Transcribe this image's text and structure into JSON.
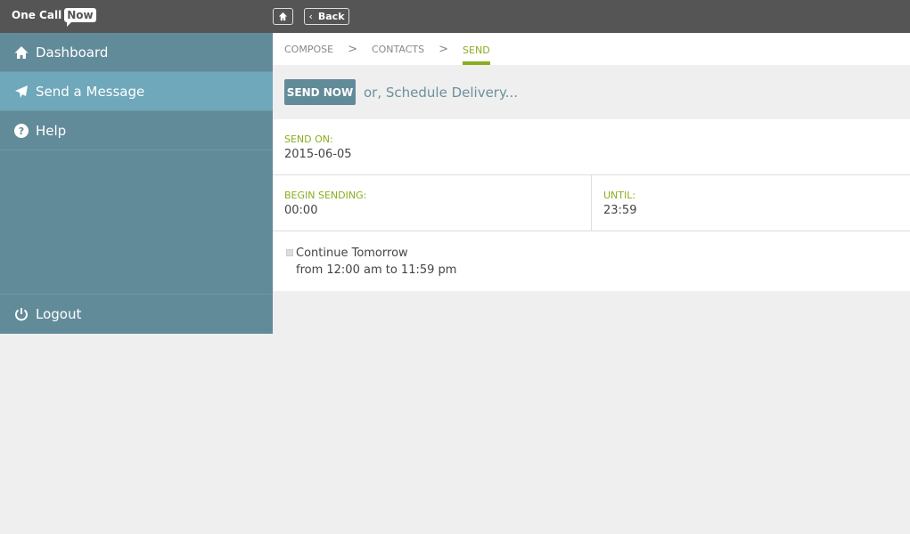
{
  "header": {
    "logo_text": "One Call",
    "logo_badge": "Now",
    "home_icon": "home-icon",
    "back_label": "Back"
  },
  "sidebar": {
    "items": [
      {
        "label": "Dashboard",
        "icon": "home-icon"
      },
      {
        "label": "Send a Message",
        "icon": "paper-plane-icon",
        "active": true
      },
      {
        "label": "Help",
        "icon": "question-icon"
      }
    ],
    "logout": "Logout"
  },
  "breadcrumb": {
    "steps": [
      "COMPOSE",
      "CONTACTS",
      "SEND"
    ],
    "separator": ">"
  },
  "actions": {
    "send_now": "SEND NOW",
    "schedule": "or, Schedule Delivery..."
  },
  "form": {
    "send_on_label": "SEND ON:",
    "send_on": "2015-06-05",
    "begin_label": "BEGIN SENDING:",
    "begin": "00:00",
    "until_label": "UNTIL:",
    "until": "23:59",
    "continue_label": "Continue Tomorrow",
    "continue_checked": false,
    "continue_detail": "from 12:00 am to 11:59 pm"
  },
  "colors": {
    "accent": "#8aad1f",
    "sidebar": "#628b9a",
    "sidebar_active": "#6ea8ba"
  }
}
